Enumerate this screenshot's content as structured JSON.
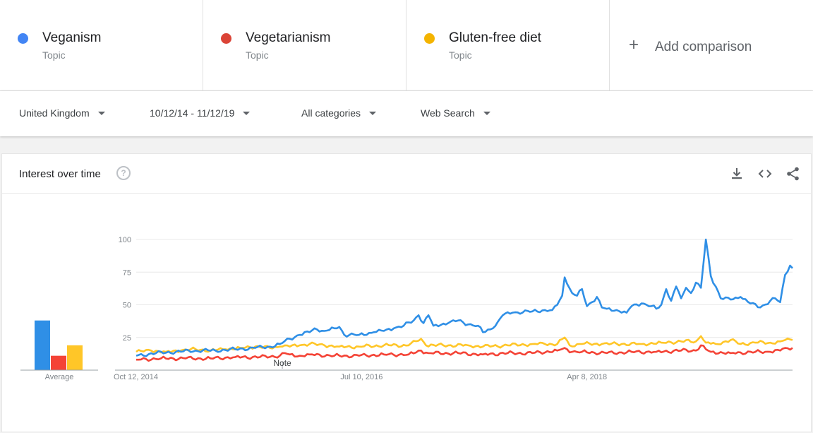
{
  "terms": [
    {
      "name": "Veganism",
      "type": "Topic",
      "color": "#4285f4"
    },
    {
      "name": "Vegetarianism",
      "type": "Topic",
      "color": "#db4437"
    },
    {
      "name": "Gluten-free diet",
      "type": "Topic",
      "color": "#f4b400"
    }
  ],
  "add_comparison": {
    "label": "Add comparison",
    "icon": "plus-icon"
  },
  "filters": {
    "region": "United Kingdom",
    "date_range": "10/12/14 - 11/12/19",
    "category": "All categories",
    "search_type": "Web Search"
  },
  "card": {
    "title": "Interest over time",
    "help_icon": "help-icon",
    "actions": [
      "download-icon",
      "embed-icon",
      "share-icon"
    ],
    "help_glyph": "?"
  },
  "chart_data": {
    "type": "line",
    "y_ticks": [
      25,
      50,
      75,
      100
    ],
    "ylim": [
      0,
      100
    ],
    "x_tick_labels": [
      "Oct 12, 2014",
      "Jul 10, 2016",
      "Apr 8, 2018"
    ],
    "x_tick_weeks": [
      0,
      91,
      182
    ],
    "note_label": "Note",
    "note_week": 59,
    "total_weeks": 265,
    "average_label": "Average",
    "averages": [
      {
        "name": "Veganism",
        "value": 38,
        "color": "#2f8fe6"
      },
      {
        "name": "Vegetarianism",
        "value": 11,
        "color": "#f44336"
      },
      {
        "name": "Gluten-free diet",
        "value": 19,
        "color": "#ffc628"
      }
    ],
    "series": [
      {
        "name": "Veganism",
        "color": "#2f8fe6",
        "points": [
          [
            0,
            11
          ],
          [
            8,
            13
          ],
          [
            16,
            14
          ],
          [
            24,
            15
          ],
          [
            32,
            15
          ],
          [
            40,
            16
          ],
          [
            48,
            17
          ],
          [
            54,
            18
          ],
          [
            58,
            20
          ],
          [
            62,
            24
          ],
          [
            66,
            27
          ],
          [
            70,
            29
          ],
          [
            72,
            32
          ],
          [
            76,
            30
          ],
          [
            80,
            32
          ],
          [
            82,
            33
          ],
          [
            84,
            27
          ],
          [
            90,
            27
          ],
          [
            96,
            29
          ],
          [
            100,
            30
          ],
          [
            104,
            32
          ],
          [
            108,
            34
          ],
          [
            112,
            38
          ],
          [
            114,
            42
          ],
          [
            116,
            36
          ],
          [
            118,
            42
          ],
          [
            120,
            34
          ],
          [
            126,
            36
          ],
          [
            130,
            38
          ],
          [
            134,
            35
          ],
          [
            138,
            34
          ],
          [
            140,
            29
          ],
          [
            144,
            32
          ],
          [
            146,
            37
          ],
          [
            148,
            42
          ],
          [
            152,
            44
          ],
          [
            160,
            45
          ],
          [
            165,
            46
          ],
          [
            168,
            46
          ],
          [
            170,
            50
          ],
          [
            172,
            57
          ],
          [
            173,
            71
          ],
          [
            174,
            66
          ],
          [
            176,
            59
          ],
          [
            178,
            57
          ],
          [
            180,
            62
          ],
          [
            182,
            49
          ],
          [
            184,
            52
          ],
          [
            186,
            56
          ],
          [
            188,
            48
          ],
          [
            190,
            47
          ],
          [
            194,
            46
          ],
          [
            198,
            44
          ],
          [
            200,
            49
          ],
          [
            204,
            51
          ],
          [
            208,
            49
          ],
          [
            210,
            47
          ],
          [
            212,
            50
          ],
          [
            214,
            62
          ],
          [
            216,
            53
          ],
          [
            218,
            64
          ],
          [
            220,
            55
          ],
          [
            222,
            63
          ],
          [
            224,
            59
          ],
          [
            226,
            67
          ],
          [
            228,
            63
          ],
          [
            230,
            100
          ],
          [
            232,
            72
          ],
          [
            234,
            64
          ],
          [
            236,
            55
          ],
          [
            240,
            54
          ],
          [
            244,
            56
          ],
          [
            248,
            51
          ],
          [
            252,
            48
          ],
          [
            256,
            53
          ],
          [
            258,
            55
          ],
          [
            260,
            52
          ],
          [
            262,
            73
          ],
          [
            264,
            80
          ],
          [
            265,
            78
          ]
        ]
      },
      {
        "name": "Vegetarianism",
        "color": "#f44336",
        "points": [
          [
            0,
            8
          ],
          [
            10,
            9
          ],
          [
            20,
            9
          ],
          [
            30,
            9
          ],
          [
            40,
            10
          ],
          [
            50,
            10
          ],
          [
            58,
            11
          ],
          [
            60,
            13
          ],
          [
            62,
            12
          ],
          [
            66,
            11
          ],
          [
            70,
            12
          ],
          [
            80,
            11
          ],
          [
            90,
            11
          ],
          [
            100,
            12
          ],
          [
            110,
            12
          ],
          [
            115,
            15
          ],
          [
            118,
            13
          ],
          [
            130,
            13
          ],
          [
            140,
            12
          ],
          [
            150,
            13
          ],
          [
            160,
            13
          ],
          [
            170,
            15
          ],
          [
            173,
            17
          ],
          [
            176,
            14
          ],
          [
            180,
            14
          ],
          [
            190,
            13
          ],
          [
            200,
            14
          ],
          [
            210,
            14
          ],
          [
            220,
            15
          ],
          [
            226,
            15
          ],
          [
            228,
            19
          ],
          [
            230,
            16
          ],
          [
            232,
            14
          ],
          [
            240,
            13
          ],
          [
            250,
            14
          ],
          [
            256,
            14
          ],
          [
            260,
            15
          ],
          [
            262,
            17
          ],
          [
            265,
            17
          ]
        ]
      },
      {
        "name": "Gluten-free diet",
        "color": "#ffc628",
        "points": [
          [
            0,
            14
          ],
          [
            6,
            15
          ],
          [
            12,
            14
          ],
          [
            18,
            15
          ],
          [
            24,
            16
          ],
          [
            30,
            15
          ],
          [
            36,
            16
          ],
          [
            42,
            17
          ],
          [
            48,
            18
          ],
          [
            54,
            17
          ],
          [
            58,
            18
          ],
          [
            60,
            19
          ],
          [
            62,
            18
          ],
          [
            66,
            19
          ],
          [
            70,
            20
          ],
          [
            76,
            19
          ],
          [
            82,
            18
          ],
          [
            90,
            18
          ],
          [
            100,
            19
          ],
          [
            110,
            19
          ],
          [
            115,
            24
          ],
          [
            117,
            19
          ],
          [
            126,
            19
          ],
          [
            134,
            19
          ],
          [
            140,
            18
          ],
          [
            150,
            19
          ],
          [
            160,
            20
          ],
          [
            165,
            20
          ],
          [
            170,
            20
          ],
          [
            173,
            25
          ],
          [
            175,
            19
          ],
          [
            180,
            20
          ],
          [
            188,
            20
          ],
          [
            196,
            20
          ],
          [
            204,
            20
          ],
          [
            212,
            21
          ],
          [
            220,
            22
          ],
          [
            226,
            22
          ],
          [
            228,
            26
          ],
          [
            230,
            21
          ],
          [
            234,
            20
          ],
          [
            240,
            23
          ],
          [
            244,
            20
          ],
          [
            250,
            21
          ],
          [
            256,
            21
          ],
          [
            260,
            22
          ],
          [
            262,
            23
          ],
          [
            265,
            23
          ]
        ]
      }
    ]
  }
}
